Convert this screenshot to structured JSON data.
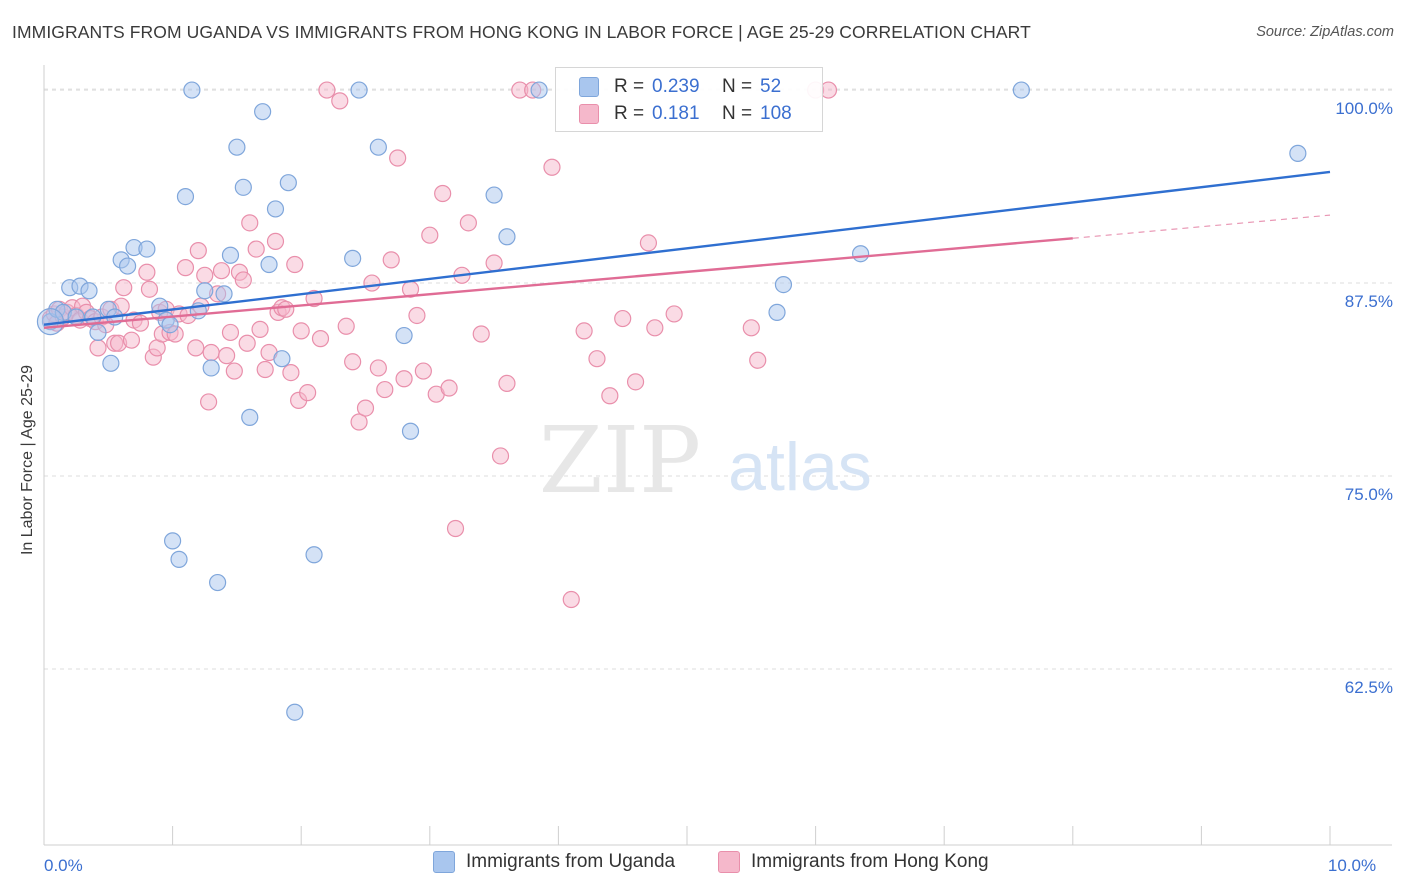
{
  "title": "IMMIGRANTS FROM UGANDA VS IMMIGRANTS FROM HONG KONG IN LABOR FORCE | AGE 25-29 CORRELATION CHART",
  "source": "Source: ZipAtlas.com",
  "watermark": {
    "part1": "ZIP",
    "part2": "atlas"
  },
  "colors": {
    "uganda_fill": "#a9c6ee",
    "uganda_stroke": "#7fa6db",
    "uganda_line": "#2f6fd0",
    "hongkong_fill": "#f5b8cb",
    "hongkong_stroke": "#e98fab",
    "hongkong_line": "#e06c95",
    "tick_label": "#3b6fd0",
    "grid": "#dddddd"
  },
  "legend_top": {
    "rows": [
      {
        "series": "uganda",
        "r_label": "R =",
        "r_value": "0.239",
        "n_label": "N =",
        "n_value": "52"
      },
      {
        "series": "hongkong",
        "r_label": "R =",
        "r_value": "0.181",
        "n_label": "N =",
        "n_value": "108"
      }
    ]
  },
  "legend_bottom": [
    {
      "series": "uganda",
      "label": "Immigrants from Uganda"
    },
    {
      "series": "hongkong",
      "label": "Immigrants from Hong Kong"
    }
  ],
  "chart_data": {
    "type": "scatter",
    "title": "IMMIGRANTS FROM UGANDA VS IMMIGRANTS FROM HONG KONG IN LABOR FORCE | AGE 25-29 CORRELATION CHART",
    "xlabel": "",
    "ylabel": "In Labor Force | Age 25-29",
    "xlim": [
      0,
      10
    ],
    "ylim": [
      51.1,
      101.3
    ],
    "x_tick_labels": [
      {
        "value": 0,
        "label": "0.0%"
      },
      {
        "value": 10,
        "label": "10.0%"
      }
    ],
    "x_minor_ticks": [
      1,
      2,
      3,
      4,
      5,
      6,
      7,
      8,
      9,
      10
    ],
    "y_ticks": [
      {
        "value": 100,
        "label": "100.0%"
      },
      {
        "value": 87.5,
        "label": "87.5%"
      },
      {
        "value": 75,
        "label": "75.0%"
      },
      {
        "value": 62.5,
        "label": "62.5%"
      }
    ],
    "grid": true,
    "legend_position": "top-center",
    "series": [
      {
        "name": "Immigrants from Uganda",
        "key": "uganda",
        "points": [
          [
            0.05,
            85.0
          ],
          [
            0.1,
            85.8
          ],
          [
            0.15,
            85.6
          ],
          [
            0.2,
            87.2
          ],
          [
            0.25,
            85.3
          ],
          [
            0.28,
            87.3
          ],
          [
            0.35,
            87.0
          ],
          [
            0.38,
            85.3
          ],
          [
            0.42,
            84.3
          ],
          [
            0.5,
            85.8
          ],
          [
            0.52,
            82.3
          ],
          [
            0.55,
            85.3
          ],
          [
            0.6,
            89.0
          ],
          [
            0.65,
            88.6
          ],
          [
            0.7,
            89.8
          ],
          [
            0.8,
            89.7
          ],
          [
            0.9,
            86.0
          ],
          [
            0.95,
            85.1
          ],
          [
            0.98,
            84.8
          ],
          [
            1.0,
            70.8
          ],
          [
            1.05,
            69.6
          ],
          [
            1.1,
            93.1
          ],
          [
            1.15,
            100.0
          ],
          [
            1.2,
            85.7
          ],
          [
            1.25,
            87.0
          ],
          [
            1.3,
            82.0
          ],
          [
            1.35,
            68.1
          ],
          [
            1.4,
            86.8
          ],
          [
            1.45,
            89.3
          ],
          [
            1.5,
            96.3
          ],
          [
            1.55,
            93.7
          ],
          [
            1.6,
            78.8
          ],
          [
            1.7,
            98.6
          ],
          [
            1.75,
            88.7
          ],
          [
            1.8,
            92.3
          ],
          [
            1.85,
            82.6
          ],
          [
            1.9,
            94.0
          ],
          [
            1.95,
            59.7
          ],
          [
            2.1,
            69.9
          ],
          [
            2.4,
            89.1
          ],
          [
            2.45,
            100.0
          ],
          [
            2.6,
            96.3
          ],
          [
            2.8,
            84.1
          ],
          [
            2.85,
            77.9
          ],
          [
            3.5,
            93.2
          ],
          [
            3.6,
            90.5
          ],
          [
            3.85,
            100.0
          ],
          [
            5.7,
            85.6
          ],
          [
            5.75,
            87.4
          ],
          [
            6.35,
            89.4
          ],
          [
            7.6,
            100.0
          ],
          [
            9.75,
            95.9
          ]
        ],
        "trend": {
          "x": [
            0.0,
            10.0
          ],
          "y": [
            84.8,
            94.7
          ]
        }
      },
      {
        "name": "Immigrants from Hong Kong",
        "key": "hongkong",
        "points": [
          [
            0.05,
            85.2
          ],
          [
            0.08,
            85.5
          ],
          [
            0.1,
            84.9
          ],
          [
            0.12,
            85.8
          ],
          [
            0.15,
            85.3
          ],
          [
            0.18,
            85.6
          ],
          [
            0.22,
            85.9
          ],
          [
            0.25,
            85.4
          ],
          [
            0.28,
            85.1
          ],
          [
            0.3,
            86.0
          ],
          [
            0.33,
            85.6
          ],
          [
            0.36,
            85.2
          ],
          [
            0.4,
            85.0
          ],
          [
            0.42,
            83.3
          ],
          [
            0.45,
            85.3
          ],
          [
            0.48,
            84.8
          ],
          [
            0.52,
            85.8
          ],
          [
            0.55,
            83.6
          ],
          [
            0.58,
            83.6
          ],
          [
            0.6,
            86.0
          ],
          [
            0.62,
            87.2
          ],
          [
            0.68,
            83.8
          ],
          [
            0.7,
            85.1
          ],
          [
            0.75,
            84.9
          ],
          [
            0.8,
            88.2
          ],
          [
            0.82,
            87.1
          ],
          [
            0.85,
            82.7
          ],
          [
            0.88,
            83.3
          ],
          [
            0.9,
            85.6
          ],
          [
            0.92,
            84.2
          ],
          [
            0.95,
            85.8
          ],
          [
            0.98,
            84.3
          ],
          [
            1.02,
            84.2
          ],
          [
            1.05,
            85.5
          ],
          [
            1.1,
            88.5
          ],
          [
            1.12,
            85.4
          ],
          [
            1.18,
            83.3
          ],
          [
            1.2,
            89.6
          ],
          [
            1.22,
            86.0
          ],
          [
            1.25,
            88.0
          ],
          [
            1.28,
            79.8
          ],
          [
            1.3,
            83.0
          ],
          [
            1.35,
            86.8
          ],
          [
            1.38,
            88.3
          ],
          [
            1.42,
            82.8
          ],
          [
            1.45,
            84.3
          ],
          [
            1.48,
            81.8
          ],
          [
            1.52,
            88.2
          ],
          [
            1.55,
            87.7
          ],
          [
            1.58,
            83.6
          ],
          [
            1.6,
            91.4
          ],
          [
            1.65,
            89.7
          ],
          [
            1.68,
            84.5
          ],
          [
            1.72,
            81.9
          ],
          [
            1.75,
            83.0
          ],
          [
            1.8,
            90.2
          ],
          [
            1.82,
            85.6
          ],
          [
            1.85,
            85.9
          ],
          [
            1.88,
            85.8
          ],
          [
            1.92,
            81.7
          ],
          [
            1.95,
            88.7
          ],
          [
            1.98,
            79.9
          ],
          [
            2.0,
            84.4
          ],
          [
            2.05,
            80.4
          ],
          [
            2.1,
            86.5
          ],
          [
            2.15,
            83.9
          ],
          [
            2.2,
            100.0
          ],
          [
            2.3,
            99.3
          ],
          [
            2.35,
            84.7
          ],
          [
            2.4,
            82.4
          ],
          [
            2.45,
            78.5
          ],
          [
            2.5,
            79.4
          ],
          [
            2.55,
            87.5
          ],
          [
            2.6,
            82.0
          ],
          [
            2.65,
            80.6
          ],
          [
            2.7,
            89.0
          ],
          [
            2.75,
            95.6
          ],
          [
            2.8,
            81.3
          ],
          [
            2.85,
            87.1
          ],
          [
            2.9,
            85.4
          ],
          [
            2.95,
            81.8
          ],
          [
            3.0,
            90.6
          ],
          [
            3.05,
            80.3
          ],
          [
            3.1,
            93.3
          ],
          [
            3.15,
            80.7
          ],
          [
            3.2,
            71.6
          ],
          [
            3.25,
            88.0
          ],
          [
            3.3,
            91.4
          ],
          [
            3.4,
            84.2
          ],
          [
            3.5,
            88.8
          ],
          [
            3.55,
            76.3
          ],
          [
            3.6,
            81.0
          ],
          [
            3.7,
            100.0
          ],
          [
            3.8,
            100.0
          ],
          [
            3.95,
            95.0
          ],
          [
            4.1,
            67.0
          ],
          [
            4.2,
            84.4
          ],
          [
            4.3,
            82.6
          ],
          [
            4.4,
            80.2
          ],
          [
            4.5,
            85.2
          ],
          [
            4.6,
            81.1
          ],
          [
            4.7,
            90.1
          ],
          [
            4.75,
            84.6
          ],
          [
            4.9,
            85.5
          ],
          [
            5.5,
            84.6
          ],
          [
            5.55,
            82.5
          ],
          [
            6.0,
            100.0
          ],
          [
            6.1,
            100.0
          ]
        ],
        "trend": {
          "x": [
            0.0,
            8.0
          ],
          "y": [
            84.6,
            90.4
          ]
        },
        "trend_extension": {
          "x": [
            8.0,
            10.0
          ],
          "y": [
            90.4,
            91.9
          ]
        }
      }
    ]
  }
}
